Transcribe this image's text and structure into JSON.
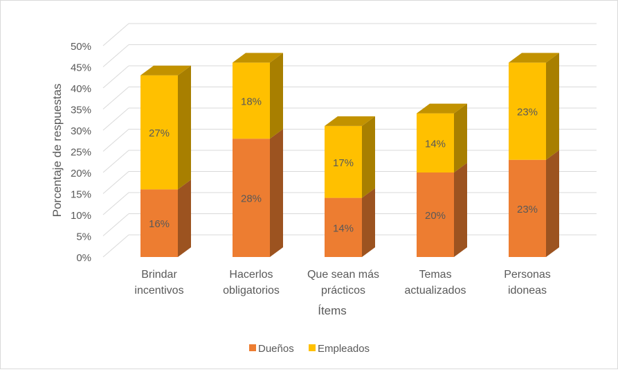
{
  "chart_data": {
    "type": "bar",
    "stacked": true,
    "three_d": true,
    "xlabel": "Ítems",
    "ylabel": "Porcentaje de respuestas",
    "ylim": [
      0,
      50
    ],
    "yticks": [
      "0%",
      "5%",
      "10%",
      "15%",
      "20%",
      "25%",
      "30%",
      "35%",
      "40%",
      "45%",
      "50%"
    ],
    "categories": [
      [
        "Brindar",
        "incentivos"
      ],
      [
        "Hacerlos",
        "obligatorios"
      ],
      [
        "Que sean más",
        "prácticos"
      ],
      [
        "Temas",
        "actualizados"
      ],
      [
        "Personas",
        "idoneas"
      ]
    ],
    "series": [
      {
        "name": "Dueños",
        "color": "#ed7d31",
        "values": [
          16,
          28,
          14,
          20,
          23
        ],
        "labels": [
          "16%",
          "28%",
          "14%",
          "20%",
          "23%"
        ]
      },
      {
        "name": "Empleados",
        "color": "#ffc000",
        "values": [
          27,
          18,
          17,
          14,
          23
        ],
        "labels": [
          "27%",
          "18%",
          "17%",
          "14%",
          "23%"
        ]
      }
    ],
    "grid": true,
    "legend": "bottom"
  }
}
